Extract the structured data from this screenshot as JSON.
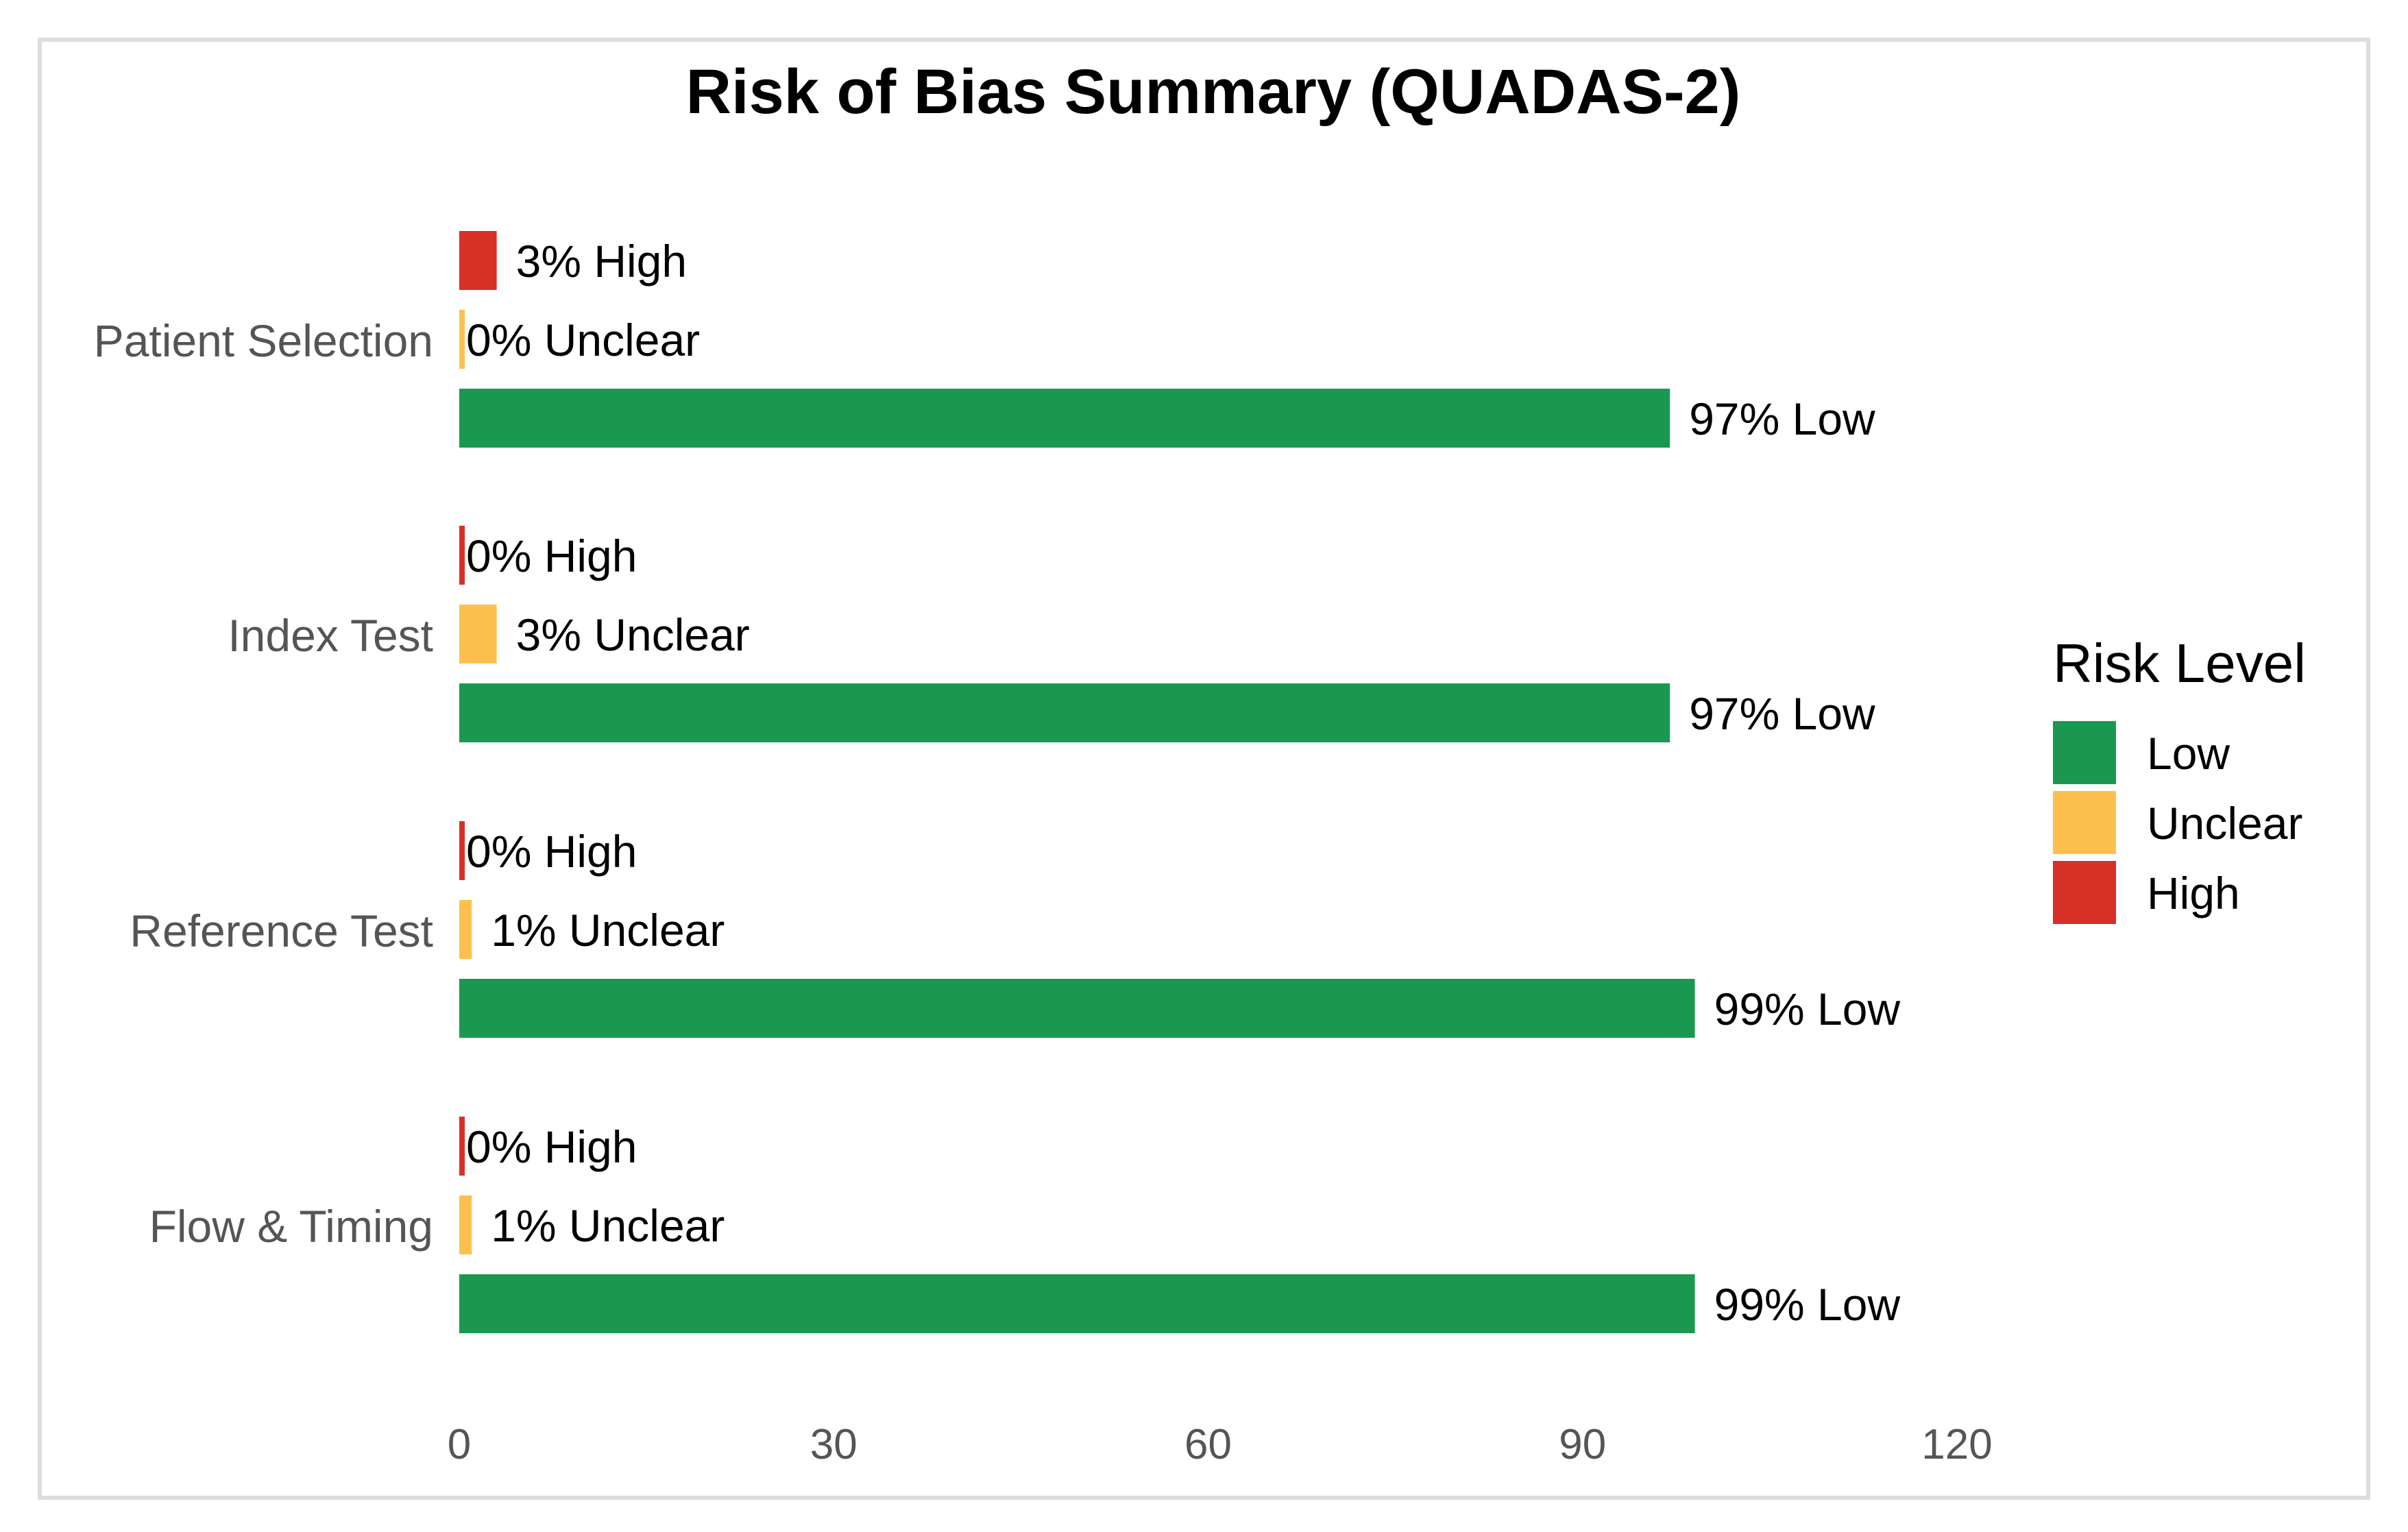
{
  "chart_data": {
    "type": "bar",
    "orientation": "horizontal",
    "title": "Risk of Bias Summary (QUADAS-2)",
    "xlabel": "",
    "ylabel": "",
    "xlim": [
      0,
      120
    ],
    "x_ticks": [
      0,
      30,
      60,
      90,
      120
    ],
    "grid": false,
    "categories": [
      "Patient Selection",
      "Index Test",
      "Reference Test",
      "Flow & Timing"
    ],
    "series": [
      {
        "name": "High",
        "color": "#d73027",
        "values": [
          3,
          0,
          0,
          0
        ],
        "labels": [
          "3% High",
          "0% High",
          "0% High",
          "0% High"
        ]
      },
      {
        "name": "Unclear",
        "color": "#fdc04e",
        "values": [
          0,
          3,
          1,
          1
        ],
        "labels": [
          "0% Unclear",
          "3% Unclear",
          "1% Unclear",
          "1% Unclear"
        ]
      },
      {
        "name": "Low",
        "color": "#1a9850",
        "values": [
          97,
          97,
          99,
          99
        ],
        "labels": [
          "97% Low",
          "97% Low",
          "99% Low",
          "99% Low"
        ]
      }
    ],
    "legend": {
      "title": "Risk Level",
      "position": "right",
      "entries": [
        {
          "label": "Low",
          "color": "#1a9850"
        },
        {
          "label": "Unclear",
          "color": "#fdc04e"
        },
        {
          "label": "High",
          "color": "#d73027"
        }
      ]
    }
  }
}
